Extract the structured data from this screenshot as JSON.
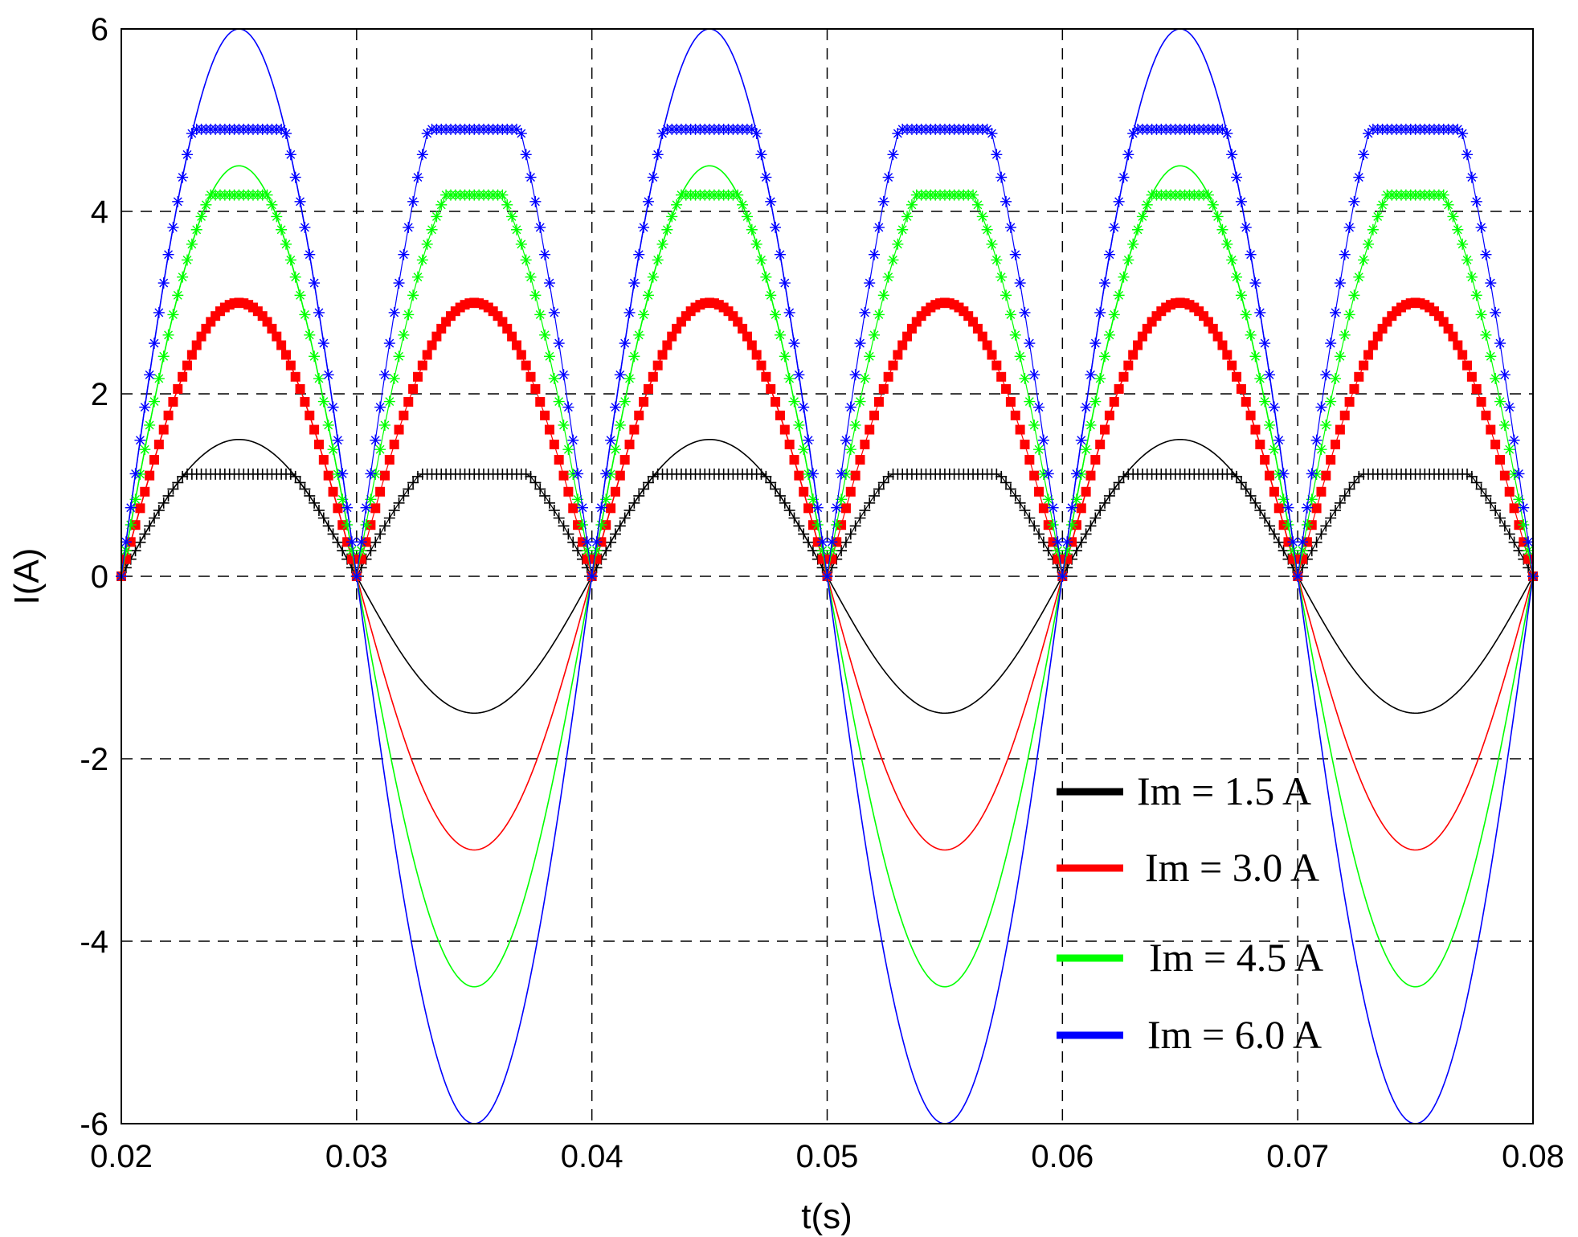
{
  "chart_data": {
    "type": "line",
    "title": "",
    "xlabel": "t(s)",
    "ylabel": "I(A)",
    "xlim": [
      0.02,
      0.08
    ],
    "ylim": [
      -6,
      6
    ],
    "xticks": [
      0.02,
      0.03,
      0.04,
      0.05,
      0.06,
      0.07,
      0.08
    ],
    "xtick_labels": [
      "0.02",
      "0.03",
      "0.04",
      "0.05",
      "0.06",
      "0.07",
      "0.08"
    ],
    "yticks": [
      -6,
      -4,
      -2,
      0,
      2,
      4,
      6
    ],
    "ytick_labels": [
      "-6",
      "-4",
      "-2",
      "0",
      "2",
      "4",
      "6"
    ],
    "grid": true,
    "grid_style": "dashed",
    "legend_position": "lower-right",
    "frequency_hz": 50,
    "series": [
      {
        "name": "Im = 1.5 A",
        "color": "#000000",
        "line_amplitude": 1.5,
        "line_kind": "sinusoid",
        "marker": "+",
        "marker_peak": 1.12,
        "marker_kind": "rectified-clipped"
      },
      {
        "name": "Im = 3.0 A",
        "color": "#ff0000",
        "line_amplitude": 3.0,
        "line_kind": "sinusoid",
        "marker": "s",
        "marker_peak": 3.0,
        "marker_kind": "rectified-clipped"
      },
      {
        "name": "Im = 4.5 A",
        "color": "#00ff00",
        "line_amplitude": 4.5,
        "line_kind": "sinusoid",
        "marker": "*",
        "marker_peak": 4.18,
        "marker_kind": "rectified-clipped"
      },
      {
        "name": "Im = 6.0 A",
        "color": "#0000ff",
        "line_amplitude": 6.0,
        "line_kind": "sinusoid",
        "marker": "*",
        "marker_peak": 4.9,
        "marker_kind": "rectified-clipped"
      }
    ]
  }
}
